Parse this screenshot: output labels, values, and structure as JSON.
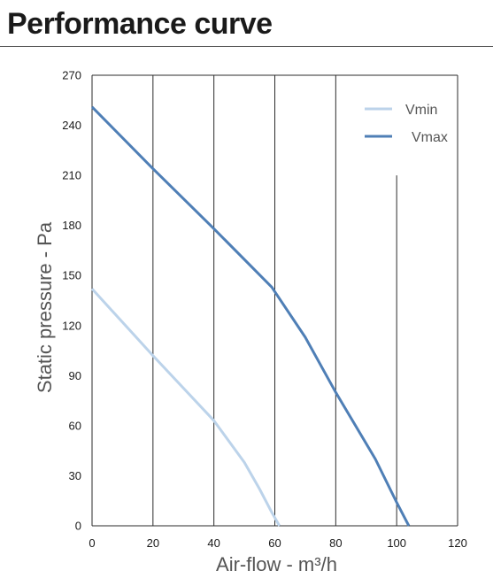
{
  "page": {
    "title": "Performance curve"
  },
  "chart_data": {
    "type": "line",
    "title": "",
    "xlabel": "Air-flow - m³/h",
    "ylabel": "Static pressure - Pa",
    "xlim": [
      0,
      120
    ],
    "ylim": [
      0,
      270
    ],
    "xticks": [
      0,
      20,
      40,
      60,
      80,
      100,
      120
    ],
    "yticks": [
      0,
      30,
      60,
      90,
      120,
      150,
      180,
      210,
      240,
      270
    ],
    "grid": "vertical",
    "legend_position": "top-right",
    "series": [
      {
        "name": "Vmin",
        "color": "#bcd3ea",
        "points": [
          [
            0,
            142
          ],
          [
            20,
            102
          ],
          [
            40,
            63
          ],
          [
            50,
            38
          ],
          [
            55,
            22
          ],
          [
            59,
            8
          ],
          [
            61.5,
            0
          ]
        ]
      },
      {
        "name": "Vmax",
        "color": "#4f7fb6",
        "points": [
          [
            0,
            251
          ],
          [
            20,
            214
          ],
          [
            40,
            178
          ],
          [
            59,
            143
          ],
          [
            70,
            113
          ],
          [
            80,
            80
          ],
          [
            93,
            40
          ],
          [
            100,
            14
          ],
          [
            104,
            0
          ]
        ]
      }
    ]
  }
}
